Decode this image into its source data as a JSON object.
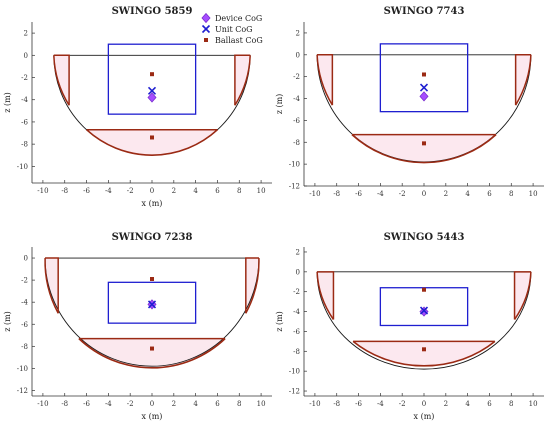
{
  "chart_data": [
    {
      "type": "line",
      "title": "SWINGO 5859",
      "xlabel": "x (m)",
      "ylabel": "z (m)",
      "xlim": [
        -11,
        11
      ],
      "ylim": [
        -11.5,
        3
      ],
      "xticks": [
        -10,
        -8,
        -6,
        -4,
        -2,
        0,
        2,
        4,
        6,
        8,
        10
      ],
      "yticks": [
        2,
        0,
        -2,
        -4,
        -6,
        -8,
        -10
      ],
      "hull": {
        "radius": 9.0,
        "waterline_z": 0,
        "ballast_level_z": -6.7,
        "ballast_half_width": 6.0
      },
      "tanks": {
        "left_outer_x": -9.0,
        "left_inner_x": -7.6,
        "right_inner_x": 7.6,
        "right_outer_x": 9.0,
        "bottom_z": -4.5
      },
      "unit_box": {
        "x": [
          -4,
          4
        ],
        "z": [
          -5.3,
          1.0
        ]
      },
      "cog": {
        "device": [
          0,
          -3.8
        ],
        "unit": [
          0,
          -3.2
        ],
        "ballast": [
          0,
          -7.4
        ],
        "ballast_top": [
          0,
          -1.7
        ]
      },
      "legend": {
        "position": "top-right",
        "entries": [
          "Device CoG",
          "Unit CoG",
          "Ballast CoG"
        ]
      }
    },
    {
      "type": "line",
      "title": "SWINGO 7743",
      "xlabel": "",
      "ylabel": "z (m)",
      "xlim": [
        -11,
        11
      ],
      "ylim": [
        -12,
        3
      ],
      "xticks": [
        -10,
        -8,
        -6,
        -4,
        -2,
        0,
        2,
        4,
        6,
        8,
        10
      ],
      "yticks": [
        2,
        0,
        -2,
        -4,
        -6,
        -8,
        -10,
        -12
      ],
      "hull": {
        "radius": 9.8,
        "waterline_z": 0,
        "ballast_level_z": -7.3,
        "ballast_half_width": 6.6
      },
      "tanks": {
        "left_outer_x": -9.8,
        "left_inner_x": -8.4,
        "right_inner_x": 8.4,
        "right_outer_x": 9.8,
        "bottom_z": -4.6
      },
      "unit_box": {
        "x": [
          -4,
          4
        ],
        "z": [
          -5.2,
          1.0
        ]
      },
      "cog": {
        "device": [
          0,
          -3.8
        ],
        "unit": [
          0,
          -3.0
        ],
        "ballast": [
          0,
          -8.1
        ],
        "ballast_top": [
          0,
          -1.8
        ]
      }
    },
    {
      "type": "line",
      "title": "SWINGO 7238",
      "xlabel": "x (m)",
      "ylabel": "z (m)",
      "xlim": [
        -11,
        11
      ],
      "ylim": [
        -12.5,
        1
      ],
      "xticks": [
        -10,
        -8,
        -6,
        -4,
        -2,
        0,
        2,
        4,
        6,
        8,
        10
      ],
      "yticks": [
        0,
        -2,
        -4,
        -6,
        -8,
        -10,
        -12
      ],
      "hull": {
        "radius": 9.8,
        "waterline_z": 0,
        "ballast_level_z": -7.3,
        "ballast_half_width": 6.7
      },
      "tanks": {
        "left_outer_x": -9.8,
        "left_inner_x": -8.6,
        "right_inner_x": 8.6,
        "right_outer_x": 9.8,
        "bottom_z": -5.0
      },
      "unit_box": {
        "x": [
          -4,
          4
        ],
        "z": [
          -5.9,
          -2.2
        ]
      },
      "cog": {
        "device": [
          0,
          -4.2
        ],
        "unit": [
          0,
          -4.2
        ],
        "ballast": [
          0,
          -8.2
        ],
        "ballast_top": [
          0,
          -1.9
        ]
      }
    },
    {
      "type": "line",
      "title": "SWINGO 5443",
      "xlabel": "x (m)",
      "ylabel": "z (m)",
      "xlim": [
        -11,
        11
      ],
      "ylim": [
        -12.5,
        2.5
      ],
      "xticks": [
        -10,
        -8,
        -6,
        -4,
        -2,
        0,
        2,
        4,
        6,
        8,
        10
      ],
      "yticks": [
        2,
        0,
        -2,
        -4,
        -6,
        -8,
        -10,
        -12
      ],
      "hull": {
        "radius": 9.8,
        "waterline_z": 0,
        "ballast_level_z": -7.0,
        "ballast_half_width": 6.5
      },
      "tanks": {
        "left_outer_x": -9.8,
        "left_inner_x": -8.3,
        "right_inner_x": 8.3,
        "right_outer_x": 9.8,
        "bottom_z": -4.8
      },
      "unit_box": {
        "x": [
          -4,
          4
        ],
        "z": [
          -5.4,
          -1.6
        ]
      },
      "cog": {
        "device": [
          0,
          -4.0
        ],
        "unit": [
          0,
          -3.9
        ],
        "ballast": [
          0,
          -7.8
        ],
        "ballast_top": [
          0,
          -1.8
        ]
      }
    }
  ],
  "colors": {
    "hull": "#1a1a1a",
    "tank": "#9b2a14",
    "tank_fill": "#fbe4ec",
    "unit_box": "#1f1fd0",
    "device": "#a64dff",
    "unit": "#1f1fd0",
    "ballast": "#9b2a14"
  }
}
